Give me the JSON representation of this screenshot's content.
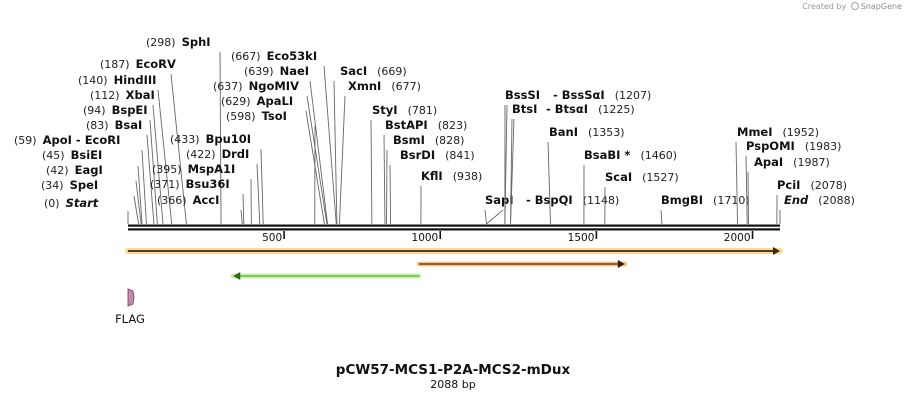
{
  "credit": {
    "prefix": "Created by",
    "brand": "SnapGene"
  },
  "map": {
    "title": "pCW57-MCS1-P2A-MCS2-mDux",
    "length_label": "2088 bp",
    "length": 2088,
    "scale_ticks": [
      "500",
      "1000",
      "1500",
      "2000"
    ],
    "sites": [
      {
        "name": "Start",
        "pos_label": "(0)",
        "bp": 0,
        "italic": true
      },
      {
        "name": "SpeI",
        "pos_label": "(34)",
        "bp": 34
      },
      {
        "name": "EagI",
        "pos_label": "(42)",
        "bp": 42
      },
      {
        "name": "BsiEI",
        "pos_label": "(45)",
        "bp": 45
      },
      {
        "name": "EcoRI",
        "pos_label": "(59)",
        "bp": 59,
        "pre": "ApoI  -"
      },
      {
        "name": "BsaI",
        "pos_label": "(83)",
        "bp": 83
      },
      {
        "name": "BspEI",
        "pos_label": "(94)",
        "bp": 94
      },
      {
        "name": "XbaI",
        "pos_label": "(112)",
        "bp": 112
      },
      {
        "name": "HindIII",
        "pos_label": "(140)",
        "bp": 140
      },
      {
        "name": "EcoRV",
        "pos_label": "(187)",
        "bp": 187
      },
      {
        "name": "SphI",
        "pos_label": "(298)",
        "bp": 298
      },
      {
        "name": "AccI",
        "pos_label": "(366)",
        "bp": 366
      },
      {
        "name": "Bsu36I",
        "pos_label": "(371)",
        "bp": 371
      },
      {
        "name": "MspA1I",
        "pos_label": "(395)",
        "bp": 395
      },
      {
        "name": "DrdI",
        "pos_label": "(422)",
        "bp": 422
      },
      {
        "name": "Bpu10I",
        "pos_label": "(433)",
        "bp": 433
      },
      {
        "name": "TsoI",
        "pos_label": "(598)",
        "bp": 598
      },
      {
        "name": "ApaLI",
        "pos_label": "(629)",
        "bp": 629
      },
      {
        "name": "NgoMIV",
        "pos_label": "(637)",
        "bp": 637
      },
      {
        "name": "NaeI",
        "pos_label": "(639)",
        "bp": 639
      },
      {
        "name": "Eco53kI",
        "pos_label": "(667)",
        "bp": 667
      },
      {
        "name": "SacI",
        "pos_label": "(669)",
        "bp": 669
      },
      {
        "name": "XmnI",
        "pos_label": "(677)",
        "bp": 677
      },
      {
        "name": "StyI",
        "pos_label": "(781)",
        "bp": 781
      },
      {
        "name": "BstAPI",
        "pos_label": "(823)",
        "bp": 823
      },
      {
        "name": "BsmI",
        "pos_label": "(828)",
        "bp": 828
      },
      {
        "name": "BsrDI",
        "pos_label": "(841)",
        "bp": 841
      },
      {
        "name": "KflI",
        "pos_label": "(938)",
        "bp": 938
      },
      {
        "name": "SapI",
        "pos_label": "",
        "bp": 1148
      },
      {
        "name": "BspQI",
        "pos_label": "(1148)",
        "bp": 1148,
        "pre": "-"
      },
      {
        "name": "BssSI",
        "pos_label": "",
        "bp": 1207
      },
      {
        "name": "BssSαI",
        "pos_label": "(1207)",
        "bp": 1207,
        "pre": "-"
      },
      {
        "name": "BtsI",
        "pos_label": "",
        "bp": 1225
      },
      {
        "name": "BtsαI",
        "pos_label": "(1225)",
        "bp": 1225,
        "pre": "-"
      },
      {
        "name": "BanI",
        "pos_label": "(1353)",
        "bp": 1353
      },
      {
        "name": "BsaBI *",
        "pos_label": "(1460)",
        "bp": 1460
      },
      {
        "name": "ScaI",
        "pos_label": "(1527)",
        "bp": 1527
      },
      {
        "name": "BmgBI",
        "pos_label": "(1710)",
        "bp": 1710
      },
      {
        "name": "MmeI",
        "pos_label": "(1952)",
        "bp": 1952
      },
      {
        "name": "PspOMI",
        "pos_label": "(1983)",
        "bp": 1983
      },
      {
        "name": "ApaI",
        "pos_label": "(1987)",
        "bp": 1987
      },
      {
        "name": "PciI",
        "pos_label": "(2078)",
        "bp": 2078
      },
      {
        "name": "End",
        "pos_label": "(2088)",
        "bp": 2088,
        "italic": true
      }
    ],
    "features": [
      {
        "name": "",
        "start": 0,
        "end": 2088,
        "direction": "forward",
        "color": "#f7b03a",
        "id": "orange"
      },
      {
        "name": "",
        "start": 932,
        "end": 1591,
        "direction": "forward",
        "color": "#8b4a2b",
        "id": "brown"
      },
      {
        "name": "",
        "start": 337,
        "end": 932,
        "direction": "reverse",
        "color": "#74c743",
        "id": "green"
      },
      {
        "name": "FLAG",
        "start": 0,
        "end": 24,
        "direction": "none",
        "color": "#c48aaa",
        "id": "flag"
      }
    ]
  }
}
